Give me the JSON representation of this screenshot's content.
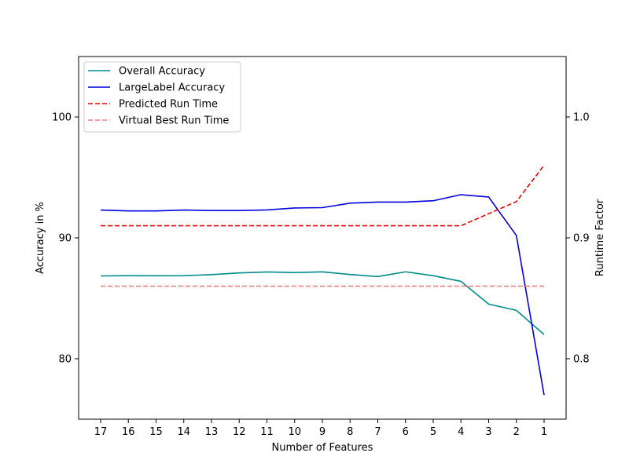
{
  "chart_data": {
    "type": "line",
    "x": [
      17,
      16,
      15,
      14,
      13,
      12,
      11,
      10,
      9,
      8,
      7,
      6,
      5,
      4,
      3,
      2,
      1
    ],
    "xlabel": "Number of Features",
    "ylabel_left": "Accuracy in %",
    "ylabel_right": "Runtime Factor",
    "ylim_left": [
      75,
      105
    ],
    "ylim_right": [
      0.75,
      1.05
    ],
    "yticks_left": [
      80,
      90,
      100
    ],
    "yticks_right": [
      0.8,
      0.9,
      1.0
    ],
    "yticks_right_labels": [
      "0.8",
      "0.9",
      "1.0"
    ],
    "grid": false,
    "legend_position": "upper-left",
    "series": [
      {
        "name": "Overall Accuracy",
        "axis": "left",
        "color": "#008b8b",
        "dash": "solid",
        "values": [
          86.85,
          86.87,
          86.86,
          86.87,
          86.96,
          87.1,
          87.18,
          87.13,
          87.19,
          86.97,
          86.8,
          87.19,
          86.87,
          86.4,
          84.52,
          84.0,
          82.0
        ]
      },
      {
        "name": "LargeLabel Accuracy",
        "axis": "left",
        "color": "#0000dd",
        "dash": "solid",
        "values": [
          92.3,
          92.23,
          92.23,
          92.3,
          92.26,
          92.26,
          92.31,
          92.47,
          92.5,
          92.87,
          92.96,
          92.96,
          93.07,
          93.57,
          93.38,
          90.2,
          77.0
        ]
      },
      {
        "name": "Predicted Run Time",
        "axis": "right",
        "color": "#ee0000",
        "dash": "dashed",
        "values": [
          0.91,
          0.91,
          0.91,
          0.91,
          0.91,
          0.91,
          0.91,
          0.91,
          0.91,
          0.91,
          0.91,
          0.91,
          0.91,
          0.91,
          0.92,
          0.93,
          0.96
        ]
      },
      {
        "name": "Virtual Best Run Time",
        "axis": "right",
        "color": "#f08080",
        "dash": "dashed",
        "values": [
          0.86,
          0.86,
          0.86,
          0.86,
          0.86,
          0.86,
          0.86,
          0.86,
          0.86,
          0.86,
          0.86,
          0.86,
          0.86,
          0.86,
          0.86,
          0.86,
          0.86
        ]
      }
    ]
  }
}
